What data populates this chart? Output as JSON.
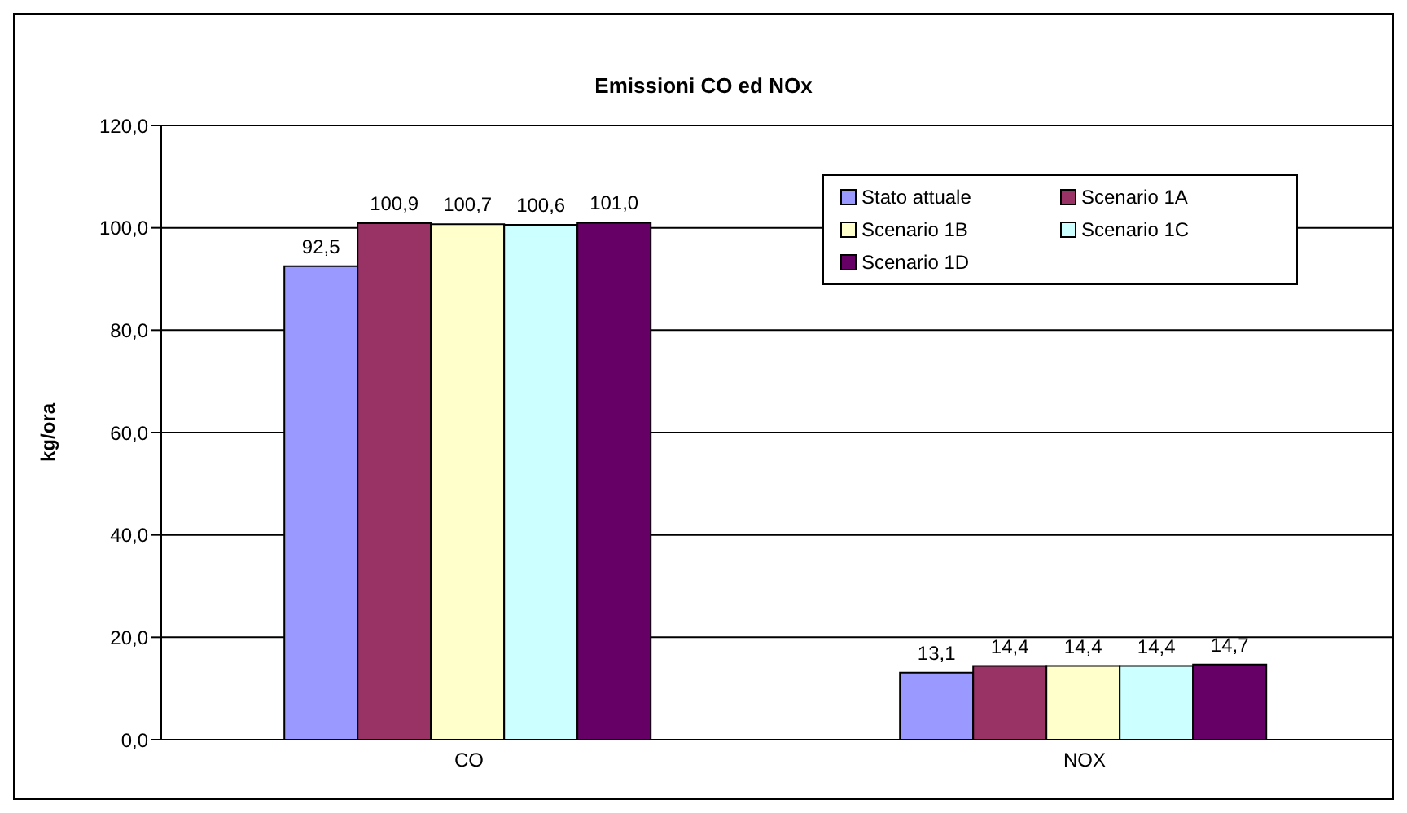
{
  "chart_data": {
    "type": "bar",
    "title": "Emissioni CO ed NOx",
    "ylabel": "kg/ora",
    "categories": [
      "CO",
      "NOX"
    ],
    "series": [
      {
        "name": "Stato attuale",
        "color": "#9999ff",
        "values": [
          92.5,
          13.1
        ],
        "value_labels": [
          "92,5",
          "13,1"
        ]
      },
      {
        "name": "Scenario 1A",
        "color": "#993366",
        "values": [
          100.9,
          14.4
        ],
        "value_labels": [
          "100,9",
          "14,4"
        ]
      },
      {
        "name": "Scenario 1B",
        "color": "#ffffcc",
        "values": [
          100.7,
          14.4
        ],
        "value_labels": [
          "100,7",
          "14,4"
        ]
      },
      {
        "name": "Scenario 1C",
        "color": "#ccffff",
        "values": [
          100.6,
          14.4
        ],
        "value_labels": [
          "100,6",
          "14,4"
        ]
      },
      {
        "name": "Scenario 1D",
        "color": "#660066",
        "values": [
          101.0,
          14.7
        ],
        "value_labels": [
          "101,0",
          "14,7"
        ]
      }
    ],
    "ylim": [
      0,
      120
    ],
    "yticks": [
      {
        "value": 0,
        "label": "0,0"
      },
      {
        "value": 20,
        "label": "20,0"
      },
      {
        "value": 40,
        "label": "40,0"
      },
      {
        "value": 60,
        "label": "60,0"
      },
      {
        "value": 80,
        "label": "80,0"
      },
      {
        "value": 100,
        "label": "100,0"
      },
      {
        "value": 120,
        "label": "120,0"
      }
    ],
    "grid": "y",
    "legend": "top right"
  }
}
